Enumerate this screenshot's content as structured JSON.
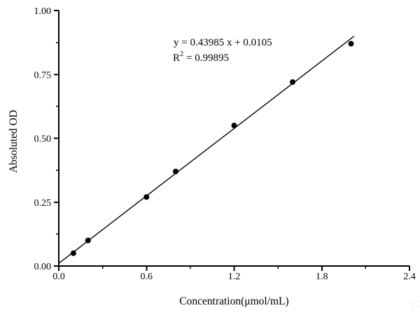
{
  "figure": {
    "watermark": "Fl",
    "annotation": {
      "equation": "y = 0.43985 x + 0.0105",
      "r2_base": "R",
      "r2_sup": "2",
      "r2_rest": " = 0.99895"
    }
  },
  "chart_data": {
    "type": "scatter",
    "title": "",
    "xlabel": "Concentration(μmol/mL)",
    "ylabel": "Absoluted OD",
    "x": [
      0.1,
      0.2,
      0.6,
      0.8,
      1.2,
      1.6,
      2.0
    ],
    "y": [
      0.05,
      0.1,
      0.27,
      0.37,
      0.55,
      0.72,
      0.87
    ],
    "fit_line": {
      "slope": 0.43985,
      "intercept": 0.0105,
      "x_start": 0.0,
      "x_end": 2.02
    },
    "xlim": [
      0.0,
      2.4
    ],
    "ylim": [
      0.0,
      1.0
    ],
    "x_tick_values": [
      0.0,
      0.6,
      1.2,
      1.8,
      2.4
    ],
    "x_tick_labels": [
      "0.0",
      "0.6",
      "1.2",
      "1.8",
      "2.4"
    ],
    "x_minor_step": 0.3,
    "y_tick_values": [
      0.0,
      0.25,
      0.5,
      0.75,
      1.0
    ],
    "y_tick_labels": [
      "0.00",
      "0.25",
      "0.50",
      "0.75",
      "1.00"
    ],
    "y_minor_step": 0.125,
    "grid": false,
    "legend": null,
    "marker": {
      "shape": "circle",
      "color": "#000000",
      "radius": 4
    },
    "line_color": "#000000",
    "axis_color": "#000000",
    "background": "#ffffff"
  }
}
